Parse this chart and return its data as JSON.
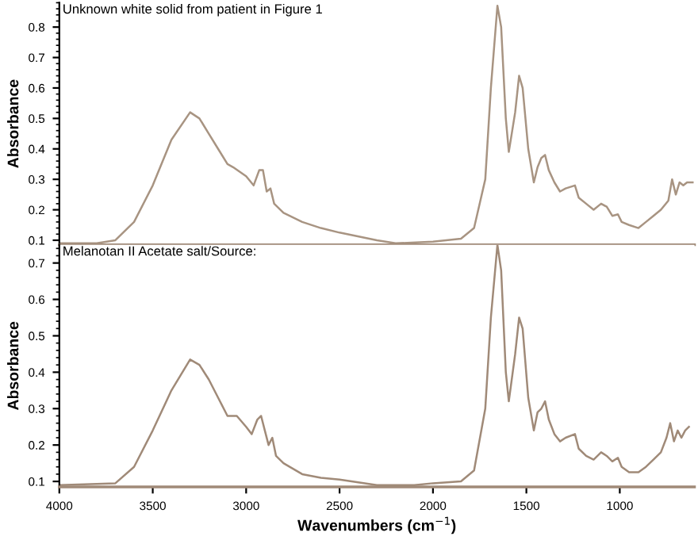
{
  "chart_data": [
    {
      "type": "line",
      "title": "Unknown white solid from patient in Figure 1",
      "ylabel": "Absorbance",
      "xlim": [
        4000,
        600
      ],
      "ylim": [
        0.085,
        0.88
      ],
      "yticks": [
        0.1,
        0.2,
        0.3,
        0.4,
        0.5,
        0.6,
        0.7,
        0.8
      ],
      "tick_labels": "y",
      "grid": false,
      "legend": false,
      "series": [
        {
          "color": "#a89482",
          "x": [
            4000,
            3800,
            3700,
            3600,
            3500,
            3400,
            3300,
            3250,
            3200,
            3150,
            3100,
            3070,
            3000,
            2960,
            2930,
            2910,
            2890,
            2870,
            2850,
            2800,
            2700,
            2600,
            2500,
            2300,
            2200,
            2000,
            1850,
            1780,
            1720,
            1690,
            1655,
            1635,
            1610,
            1594,
            1560,
            1539,
            1520,
            1490,
            1460,
            1440,
            1420,
            1400,
            1380,
            1350,
            1320,
            1290,
            1240,
            1220,
            1180,
            1140,
            1100,
            1070,
            1040,
            1010,
            990,
            950,
            900,
            860,
            820,
            780,
            740,
            720,
            700,
            680,
            660,
            640,
            610
          ],
          "values": [
            0.09,
            0.09,
            0.1,
            0.16,
            0.28,
            0.43,
            0.52,
            0.5,
            0.45,
            0.4,
            0.35,
            0.34,
            0.31,
            0.28,
            0.33,
            0.33,
            0.26,
            0.27,
            0.22,
            0.19,
            0.16,
            0.14,
            0.125,
            0.1,
            0.09,
            0.095,
            0.105,
            0.14,
            0.3,
            0.6,
            0.87,
            0.8,
            0.5,
            0.39,
            0.52,
            0.64,
            0.6,
            0.4,
            0.29,
            0.34,
            0.37,
            0.38,
            0.33,
            0.29,
            0.26,
            0.27,
            0.28,
            0.24,
            0.22,
            0.2,
            0.22,
            0.21,
            0.18,
            0.185,
            0.16,
            0.15,
            0.14,
            0.16,
            0.18,
            0.2,
            0.23,
            0.3,
            0.25,
            0.29,
            0.28,
            0.29,
            0.29
          ]
        }
      ]
    },
    {
      "type": "line",
      "title": "Melanotan II Acetate salt/Source:",
      "ylabel": "Absorbance",
      "xlabel": "Wavenumbers (cm$^{−1}$)",
      "xlim": [
        4000,
        600
      ],
      "xticks": [
        4000,
        3500,
        3000,
        2500,
        2000,
        1500,
        1000
      ],
      "ylim": [
        0.085,
        0.75
      ],
      "yticks": [
        0.1,
        0.2,
        0.3,
        0.4,
        0.5,
        0.6,
        0.7
      ],
      "grid": false,
      "legend": false,
      "series": [
        {
          "color": "#a08a78",
          "x": [
            4000,
            3700,
            3600,
            3500,
            3400,
            3300,
            3250,
            3200,
            3150,
            3100,
            3050,
            3000,
            2970,
            2940,
            2920,
            2900,
            2880,
            2860,
            2840,
            2800,
            2700,
            2600,
            2500,
            2300,
            2100,
            2000,
            1850,
            1780,
            1720,
            1690,
            1655,
            1635,
            1610,
            1594,
            1560,
            1539,
            1520,
            1490,
            1460,
            1440,
            1420,
            1400,
            1380,
            1350,
            1320,
            1290,
            1240,
            1220,
            1180,
            1140,
            1100,
            1070,
            1040,
            1010,
            990,
            950,
            900,
            860,
            820,
            780,
            750,
            730,
            710,
            690,
            670,
            650,
            630
          ],
          "values": [
            0.09,
            0.095,
            0.14,
            0.24,
            0.35,
            0.435,
            0.42,
            0.38,
            0.33,
            0.28,
            0.28,
            0.25,
            0.23,
            0.27,
            0.28,
            0.24,
            0.2,
            0.22,
            0.17,
            0.15,
            0.12,
            0.11,
            0.105,
            0.09,
            0.09,
            0.095,
            0.1,
            0.13,
            0.3,
            0.55,
            0.75,
            0.68,
            0.4,
            0.32,
            0.45,
            0.55,
            0.52,
            0.33,
            0.24,
            0.29,
            0.3,
            0.32,
            0.27,
            0.23,
            0.21,
            0.22,
            0.23,
            0.19,
            0.17,
            0.16,
            0.18,
            0.17,
            0.155,
            0.165,
            0.14,
            0.125,
            0.125,
            0.14,
            0.16,
            0.18,
            0.22,
            0.26,
            0.21,
            0.24,
            0.22,
            0.24,
            0.25
          ]
        }
      ]
    }
  ]
}
